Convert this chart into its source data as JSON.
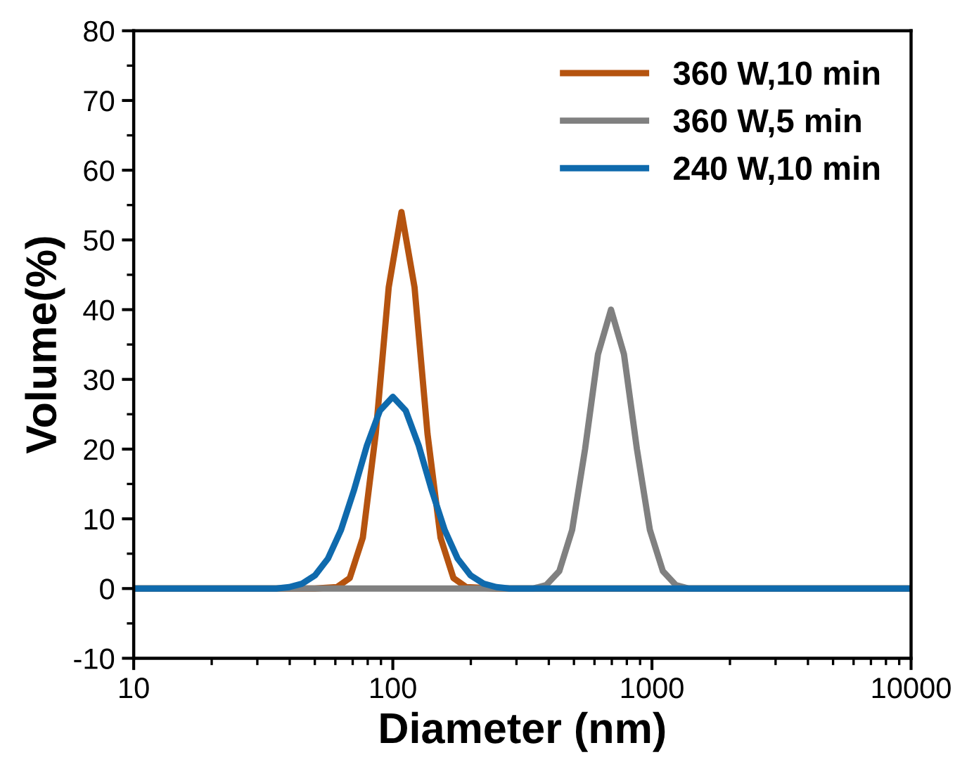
{
  "chart_data": {
    "type": "line",
    "xlabel": "Diameter (nm)",
    "ylabel": "Volume(%)",
    "log": "x",
    "xlim": [
      10,
      10000
    ],
    "xticks": [
      10,
      100,
      1000,
      10000
    ],
    "ylim": [
      -10,
      80
    ],
    "yticks": [
      -10,
      0,
      10,
      20,
      30,
      40,
      50,
      60,
      70,
      80
    ],
    "grid": false,
    "legend": "top right",
    "line_style": "solid",
    "marker": "none",
    "series": [
      {
        "name": "360 W,10 min",
        "color": "#b5530f",
        "x": [
          10,
          50,
          60.8,
          68.2,
          76.6,
          85.9,
          96.4,
          108,
          121.3,
          136.1,
          152.8,
          171.4,
          192.3,
          250,
          10000
        ],
        "values": [
          0,
          0,
          0.2,
          1.5,
          7.3,
          22.2,
          43.2,
          54,
          43.2,
          22.2,
          7.3,
          1.5,
          0.2,
          0,
          0
        ]
      },
      {
        "name": "360 W,5 min",
        "color": "#808080",
        "x": [
          10,
          300,
          348,
          391,
          439,
          492,
          552,
          619,
          695,
          780,
          875,
          982,
          1102,
          1236,
          1387,
          1600,
          10000
        ],
        "values": [
          0,
          0,
          0,
          0.5,
          2.5,
          8.4,
          20,
          33.6,
          40,
          33.6,
          20,
          8.4,
          2.5,
          0.5,
          0,
          0,
          0
        ]
      },
      {
        "name": "240 W,10 min",
        "color": "#0f6aad",
        "x": [
          10,
          30,
          35.5,
          39.8,
          44.7,
          50.1,
          56.2,
          63.1,
          70.8,
          79.4,
          89.1,
          100,
          112.2,
          125.9,
          141.3,
          158.5,
          177.8,
          199.5,
          223.9,
          251.2,
          281.8,
          330,
          10000
        ],
        "values": [
          0,
          0,
          0,
          0.2,
          0.7,
          1.9,
          4.3,
          8.4,
          14.1,
          20.5,
          25.5,
          27.5,
          25.5,
          20.5,
          14.1,
          8.4,
          4.3,
          1.9,
          0.7,
          0.2,
          0,
          0,
          0
        ]
      }
    ]
  }
}
